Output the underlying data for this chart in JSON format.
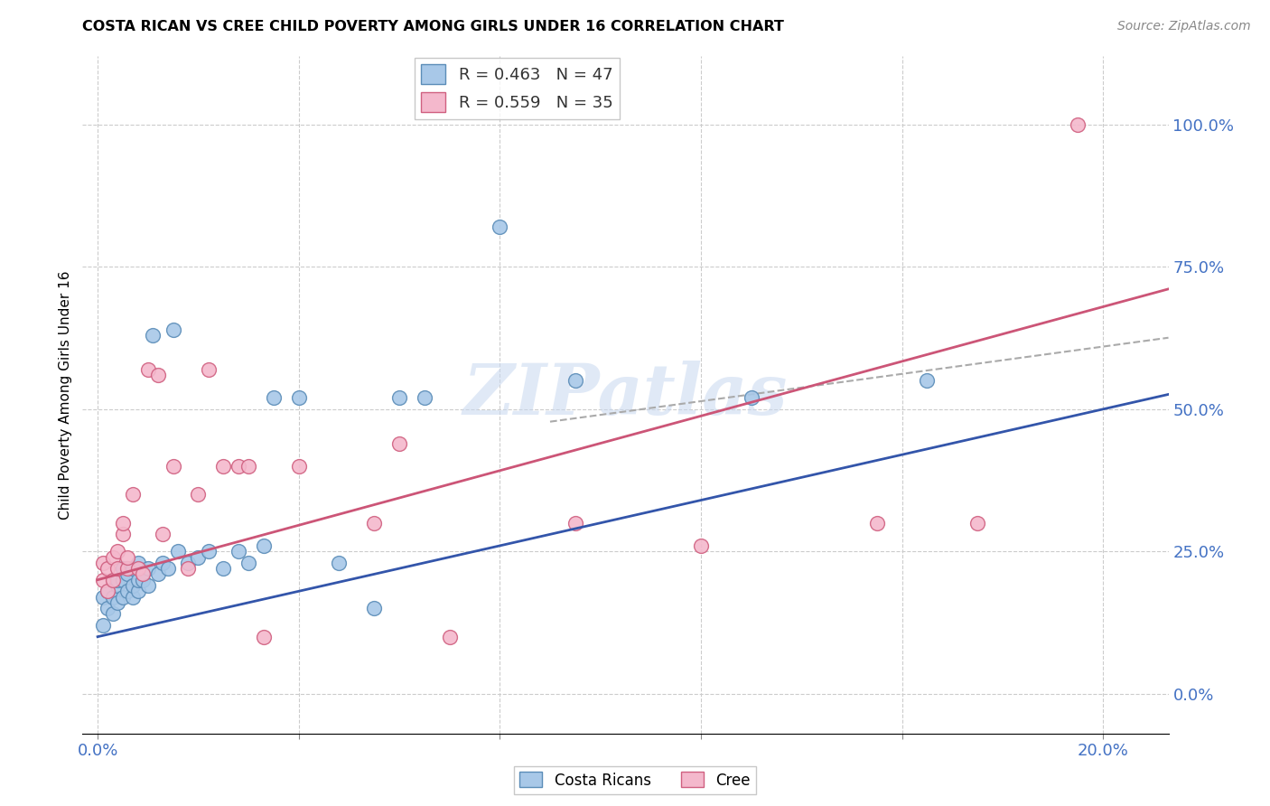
{
  "title": "COSTA RICAN VS CREE CHILD POVERTY AMONG GIRLS UNDER 16 CORRELATION CHART",
  "source": "Source: ZipAtlas.com",
  "ylabel": "Child Poverty Among Girls Under 16",
  "x_tick_labels": [
    "0.0%",
    "",
    "",
    "",
    "",
    "20.0%"
  ],
  "y_tick_right_labels": [
    "0.0%",
    "25.0%",
    "50.0%",
    "75.0%",
    "100.0%"
  ],
  "xlim": [
    -0.003,
    0.213
  ],
  "ylim": [
    -0.07,
    1.12
  ],
  "blue_color": "#A8C8E8",
  "pink_color": "#F4B8CC",
  "blue_edge_color": "#5B8DB8",
  "pink_edge_color": "#D06080",
  "blue_line_color": "#3355AA",
  "pink_line_color": "#CC5577",
  "blue_R": "0.463",
  "blue_N": "47",
  "pink_R": "0.559",
  "pink_N": "35",
  "legend_label_blue": "Costa Ricans",
  "legend_label_pink": "Cree",
  "watermark": "ZIPatlas",
  "blue_intercept": 0.1,
  "blue_slope": 2.0,
  "pink_intercept": 0.2,
  "pink_slope": 2.4,
  "costa_rican_x": [
    0.001,
    0.001,
    0.002,
    0.002,
    0.003,
    0.003,
    0.003,
    0.004,
    0.004,
    0.004,
    0.005,
    0.005,
    0.005,
    0.006,
    0.006,
    0.007,
    0.007,
    0.007,
    0.008,
    0.008,
    0.008,
    0.009,
    0.01,
    0.01,
    0.011,
    0.012,
    0.013,
    0.014,
    0.015,
    0.016,
    0.018,
    0.02,
    0.022,
    0.025,
    0.028,
    0.03,
    0.033,
    0.035,
    0.04,
    0.048,
    0.055,
    0.06,
    0.065,
    0.08,
    0.095,
    0.13,
    0.165
  ],
  "costa_rican_y": [
    0.12,
    0.17,
    0.15,
    0.18,
    0.14,
    0.17,
    0.2,
    0.16,
    0.19,
    0.2,
    0.17,
    0.2,
    0.22,
    0.18,
    0.21,
    0.17,
    0.19,
    0.22,
    0.18,
    0.2,
    0.23,
    0.2,
    0.19,
    0.22,
    0.63,
    0.21,
    0.23,
    0.22,
    0.64,
    0.25,
    0.23,
    0.24,
    0.25,
    0.22,
    0.25,
    0.23,
    0.26,
    0.52,
    0.52,
    0.23,
    0.15,
    0.52,
    0.52,
    0.82,
    0.55,
    0.52,
    0.55
  ],
  "cree_x": [
    0.001,
    0.001,
    0.002,
    0.002,
    0.003,
    0.003,
    0.004,
    0.004,
    0.005,
    0.005,
    0.006,
    0.006,
    0.007,
    0.008,
    0.009,
    0.01,
    0.012,
    0.013,
    0.015,
    0.018,
    0.02,
    0.022,
    0.025,
    0.028,
    0.03,
    0.033,
    0.04,
    0.055,
    0.06,
    0.07,
    0.095,
    0.12,
    0.155,
    0.175,
    0.195
  ],
  "cree_y": [
    0.2,
    0.23,
    0.18,
    0.22,
    0.2,
    0.24,
    0.22,
    0.25,
    0.28,
    0.3,
    0.22,
    0.24,
    0.35,
    0.22,
    0.21,
    0.57,
    0.56,
    0.28,
    0.4,
    0.22,
    0.35,
    0.57,
    0.4,
    0.4,
    0.4,
    0.1,
    0.4,
    0.3,
    0.44,
    0.1,
    0.3,
    0.26,
    0.3,
    0.3,
    1.0
  ]
}
